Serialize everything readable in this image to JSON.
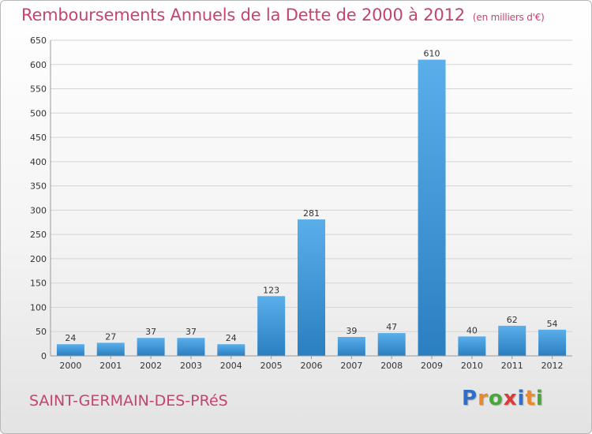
{
  "header": {
    "title": "Remboursements Annuels de la Dette de 2000 à 2012",
    "unit": "(en milliers d'€)"
  },
  "commune": "SAINT-GERMAIN-DES-PRéS",
  "logo": {
    "text": "Proxiti",
    "letter_colors": [
      "#2f6fc9",
      "#e8892a",
      "#4aa63c",
      "#d93b3b",
      "#2f6fc9",
      "#e8892a",
      "#4aa63c"
    ]
  },
  "colors": {
    "title": "#c4446e",
    "bar_light": "#5aaeea",
    "bar_dark": "#2a7fc1",
    "grid": "#d4d4d4",
    "axis_text": "#333333"
  },
  "chart_data": {
    "type": "bar",
    "categories": [
      "2000",
      "2001",
      "2002",
      "2003",
      "2004",
      "2005",
      "2006",
      "2007",
      "2008",
      "2009",
      "2010",
      "2011",
      "2012"
    ],
    "values": [
      24,
      27,
      37,
      37,
      24,
      123,
      281,
      39,
      47,
      610,
      40,
      62,
      54
    ],
    "ylim": [
      0,
      650
    ],
    "yticks": [
      0,
      50,
      100,
      150,
      200,
      250,
      300,
      350,
      400,
      450,
      500,
      550,
      600,
      650
    ],
    "grid": true,
    "xlabel": "",
    "ylabel": ""
  }
}
